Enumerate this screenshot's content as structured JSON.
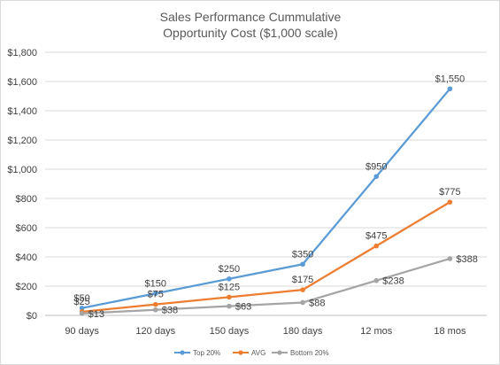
{
  "chart_data": {
    "type": "line",
    "title_lines": [
      "Sales Performance Cummulative",
      "Opportunity Cost ($1,000 scale)"
    ],
    "categories": [
      "90 days",
      "120 days",
      "150 days",
      "180 days",
      "12 mos",
      "18 mos"
    ],
    "ylim": [
      0,
      1800
    ],
    "yticks": [
      0,
      200,
      400,
      600,
      800,
      1000,
      1200,
      1400,
      1600,
      1800
    ],
    "ytick_labels": [
      "$0",
      "$200",
      "$400",
      "$600",
      "$800",
      "$1,000",
      "$1,200",
      "$1,400",
      "$1,600",
      "$1,800"
    ],
    "grid": true,
    "legend_position": "bottom",
    "series": [
      {
        "name": "Top 20%",
        "color": "#5b9bd5",
        "values": [
          50,
          150,
          250,
          350,
          950,
          1550
        ],
        "labels": [
          "$50",
          "$150",
          "$250",
          "$350",
          "$950",
          "$1,550"
        ]
      },
      {
        "name": "AVG",
        "color": "#ed7d31",
        "values": [
          25,
          75,
          125,
          175,
          475,
          775
        ],
        "labels": [
          "$25",
          "$75",
          "$125",
          "$175",
          "$475",
          "$775"
        ]
      },
      {
        "name": "Bottom 20%",
        "color": "#a5a5a5",
        "values": [
          13,
          38,
          63,
          88,
          238,
          388
        ],
        "labels": [
          "$13",
          "$38",
          "$63",
          "$88",
          "$238",
          "$388"
        ]
      }
    ]
  }
}
